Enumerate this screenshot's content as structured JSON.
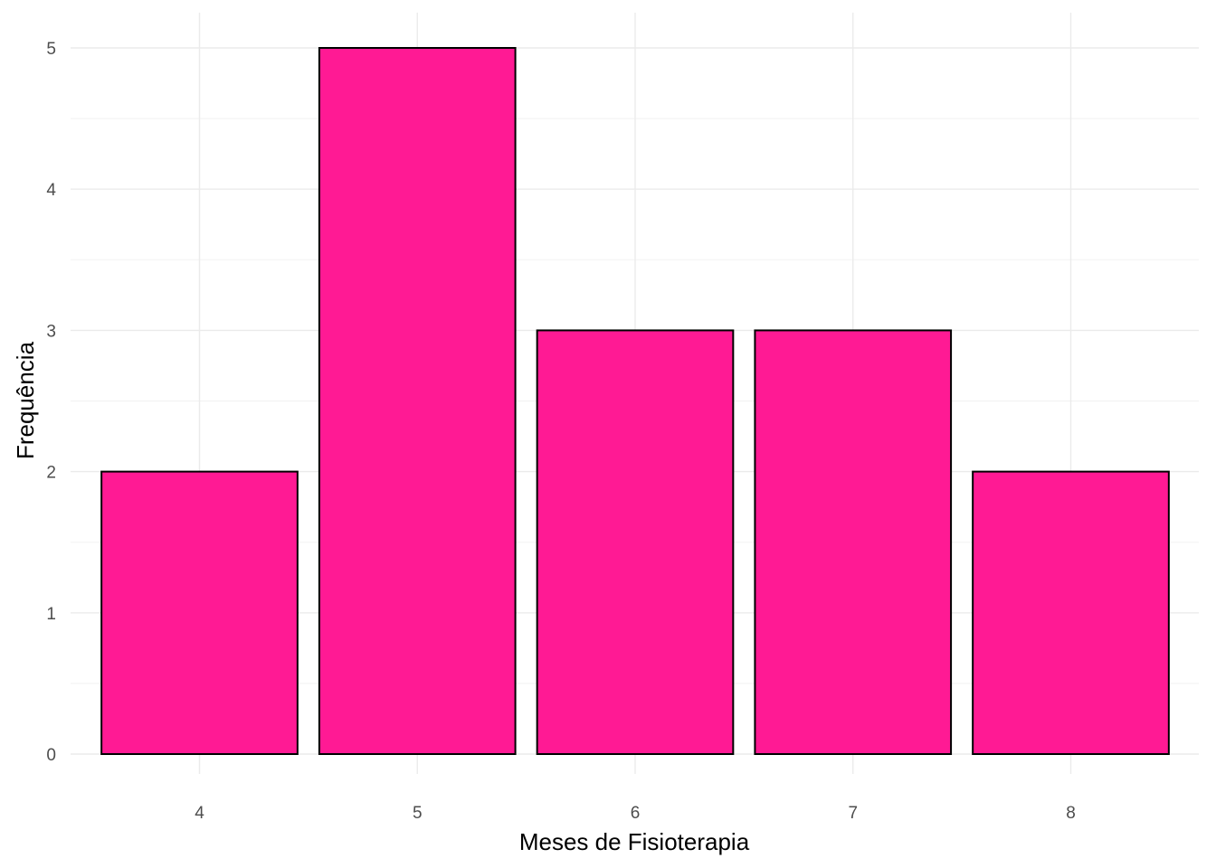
{
  "chart_data": {
    "type": "bar",
    "categories": [
      "4",
      "5",
      "6",
      "7",
      "8"
    ],
    "values": [
      2,
      5,
      3,
      3,
      2
    ],
    "title": "",
    "xlabel": "Meses de Fisioterapia",
    "ylabel": "Frequência",
    "ylim": [
      0,
      5
    ],
    "yticks": [
      "0",
      "1",
      "2",
      "3",
      "4",
      "5"
    ],
    "bar_color": "#FF1A94",
    "bar_outline_color": "#000000",
    "grid": true,
    "legend": "none"
  }
}
